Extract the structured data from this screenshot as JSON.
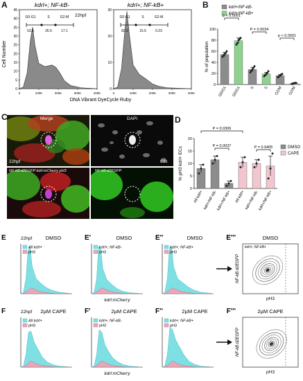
{
  "panel_letters": {
    "A": "A",
    "B": "B",
    "C": "C",
    "D": "D",
    "E": "E",
    "E1": "E'",
    "E2": "E''",
    "E3": "E'''",
    "F": "F",
    "F1": "F'",
    "F2": "F''",
    "F3": "F'''"
  },
  "panelA": {
    "title1": "kdrl+; NF-kB-",
    "title2": "kdrl+; NF-kB+",
    "stage": "22hpf",
    "ylabel": "Cell Number",
    "xlabel": "DNA Vibrant DyeCycle Ruby",
    "y_ticks": [
      "0",
      "5",
      "10",
      "15",
      "20",
      "25",
      "30",
      "35",
      "40",
      "45"
    ],
    "y_ticks2": [
      "0",
      "10",
      "20",
      "30"
    ],
    "x_ticks": [
      "0",
      "100K",
      "200K",
      "300K",
      "400K"
    ],
    "gate_names": [
      "G0-G1",
      "S",
      "G2-M"
    ],
    "gates_neg": [
      "53.6",
      "26.5",
      "17.1"
    ],
    "gates_pos": [
      "82.2",
      "15.5",
      "0.23"
    ]
  },
  "chart_data": [
    {
      "type": "bar",
      "panel": "B",
      "ylabel": "% of population",
      "ylim": [
        0,
        100
      ],
      "y_ticks": [
        "0",
        "20",
        "40",
        "60",
        "80",
        "100"
      ],
      "legend": [
        "kdrl+/NF-kB-",
        "kdrl+/NF-kB+"
      ],
      "legend_colors": [
        "#8c8c8c",
        "#8fd28f"
      ],
      "categories": [
        "G0/G1",
        "G0/G1",
        "S",
        "S",
        "G2/M",
        "G2/M"
      ],
      "series_index": [
        0,
        1,
        0,
        1,
        0,
        1
      ],
      "values": [
        54,
        79,
        27,
        19,
        16,
        2
      ],
      "errors": [
        4,
        5,
        4,
        3,
        2,
        1
      ],
      "points": [
        [
          50,
          53,
          55,
          57,
          60
        ],
        [
          72,
          75,
          80,
          82,
          84
        ],
        [
          22,
          25,
          27,
          30,
          33
        ],
        [
          15,
          17,
          19,
          21,
          24
        ],
        [
          13,
          15,
          16,
          18,
          19
        ],
        [
          1,
          2,
          2,
          3,
          3
        ]
      ],
      "annotations": [
        "p < 0.0001",
        "P = 0.0034",
        "p < 0.0001"
      ]
    },
    {
      "type": "bar",
      "panel": "D",
      "ylabel": "% pH3 kdrl+ ECs",
      "ylim": [
        0,
        20
      ],
      "y_ticks": [
        "0",
        "5",
        "10",
        "15",
        "20"
      ],
      "legend": [
        "DMSO",
        "CAPE"
      ],
      "legend_colors": [
        "#8c8c8c",
        "#f2c6cf"
      ],
      "categories": [
        "All kdrl+",
        "kdrl+/NF-kB-",
        "kdrl+/NF-kB+",
        "All kdrl+",
        "kdrl+/NF-kB-",
        "kdrl+/NF-kB+"
      ],
      "series_index": [
        0,
        0,
        0,
        1,
        1,
        1
      ],
      "values": [
        8,
        11.5,
        2,
        10.5,
        10,
        9
      ],
      "errors": [
        1.5,
        1.5,
        1,
        2,
        1.5,
        4
      ],
      "points": [
        [
          6,
          8,
          9.5
        ],
        [
          10,
          11.5,
          13
        ],
        [
          1,
          2,
          3
        ],
        [
          8.5,
          10.5,
          12.5
        ],
        [
          8.5,
          10,
          11.5
        ],
        [
          4,
          8,
          14
        ]
      ],
      "annotations": [
        "P = 0.0306",
        "P = 0.0037",
        "P = 0.9405"
      ]
    }
  ],
  "panelC": {
    "merge": "Merge",
    "dapi": "DAPI",
    "stage": "22hpf",
    "mag": "63x",
    "bl_label": "NF-kB:d2EGFP kdrl:mCherry pH3",
    "br_label": "NF-kB:d2EGFP"
  },
  "histos": {
    "xlabel": "kdrl:mCherry",
    "e": [
      {
        "title": "DMSO",
        "stage": "22hpf",
        "legend1": "All kdrl+",
        "legend2": "pH3"
      },
      {
        "title": "DMSO",
        "stage": "",
        "legend1": "kdrl+; NF-kB-",
        "legend2": "pH3"
      },
      {
        "title": "DMSO",
        "stage": "",
        "legend1": "kdrl+; NF-kB+",
        "legend2": "pH3"
      }
    ],
    "f": [
      {
        "title": "2µM CAPE",
        "stage": "22hpf",
        "legend1": "All kdrl+",
        "legend2": "pH3"
      },
      {
        "title": "2µM CAPE",
        "stage": "",
        "legend1": "kdrl+; NF-kB-",
        "legend2": "pH3"
      },
      {
        "title": "2µM CAPE",
        "stage": "",
        "legend1": "kdrl+; NF-kB+",
        "legend2": "pH3"
      }
    ],
    "contour_e": {
      "title": "DMSO",
      "sub": "kdrl+; NF-kB+",
      "ylabel": "NF-kB:d2EGFP",
      "xlabel": "pH3"
    },
    "contour_f": {
      "title": "2µM CAPE",
      "sub": "",
      "ylabel": "NF-kB:d2EGFP",
      "xlabel": "pH3"
    }
  }
}
